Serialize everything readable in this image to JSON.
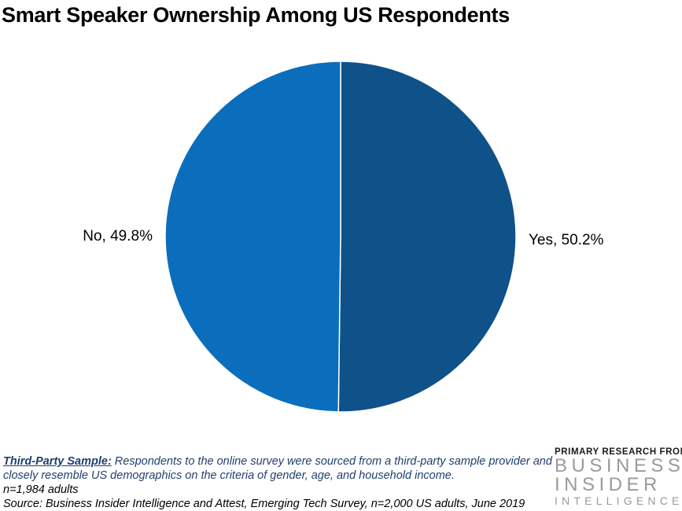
{
  "title": "Smart Speaker Ownership Among US Respondents",
  "chart_data": {
    "type": "pie",
    "title": "Smart Speaker Ownership Among US Respondents",
    "slices": [
      {
        "label": "Yes",
        "value": 50.2,
        "display": "Yes, 50.2%",
        "color": "#0f5189"
      },
      {
        "label": "No",
        "value": 49.8,
        "display": "No, 49.8%",
        "color": "#0a6ebd"
      }
    ],
    "unit": "%",
    "start_angle": "12 o'clock, clockwise",
    "legend": "none",
    "slice_border_color": "#ffffff"
  },
  "footnotes": {
    "sample_label": "Third-Party Sample:",
    "sample_text": " Respondents to the online survey were sourced from a third-party sample provider and",
    "sample_text_2": "closely resemble US demographics on the criteria of gender, age, and household income.",
    "n_line": "n=1,984 adults",
    "source": "Source: Business Insider Intelligence and Attest, Emerging Tech Survey, n=2,000 US adults, June 2019"
  },
  "logo": {
    "pre": "PRIMARY RESEARCH FROM",
    "brand_line1": "BUSINESS",
    "brand_line2": "INSIDER",
    "brand_line3": "INTELLIGENCE"
  }
}
